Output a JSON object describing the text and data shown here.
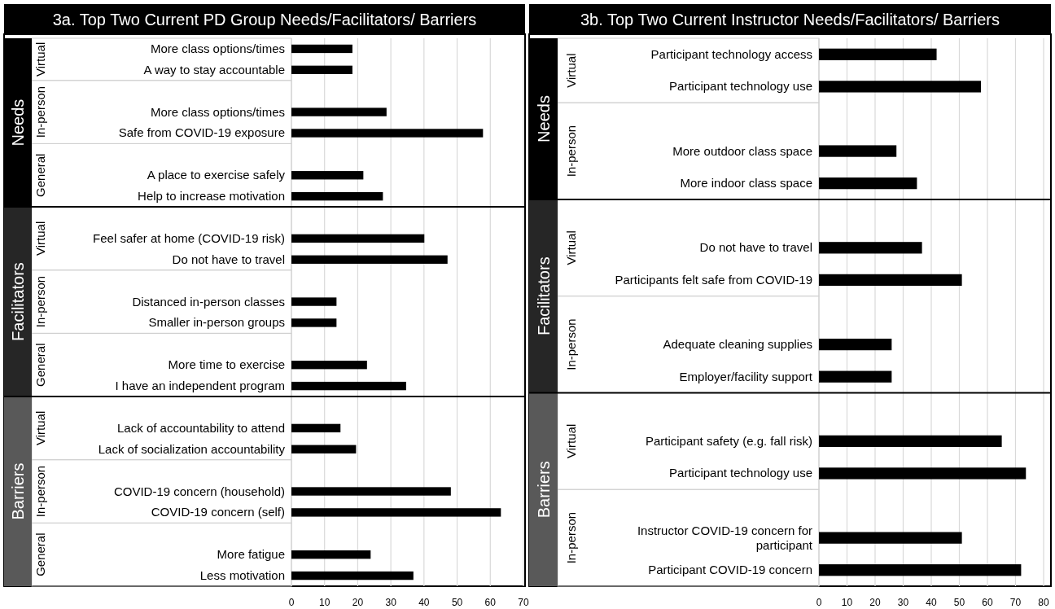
{
  "chart_data": [
    {
      "type": "bar",
      "orientation": "horizontal",
      "title": "3a. Top Two Current PD Group Needs/Facilitators/ Barriers",
      "color": "#000000",
      "grid": "x",
      "xlim": [
        0,
        70
      ],
      "xticks": [
        0,
        10,
        20,
        30,
        40,
        50,
        60,
        70
      ],
      "categories": [
        "More class options/times",
        "A way to stay accountable",
        null,
        "More class options/times",
        "Safe from COVID-19 exposure",
        null,
        "A place to exercise safely",
        "Help to increase motivation",
        null,
        "Feel safer at home (COVID-19 risk)",
        "Do not have to travel",
        null,
        "Distanced in-person classes",
        "Smaller in-person groups",
        null,
        "More time to exercise",
        "I have an independent program",
        null,
        "Lack of accountability to attend",
        "Lack of socialization accountability",
        null,
        "COVID-19 concern (household)",
        "COVID-19 concern (self)",
        null,
        "More fatigue",
        "Less motivation"
      ],
      "values": [
        18.4,
        18.4,
        null,
        28.7,
        57.8,
        null,
        21.7,
        27.6,
        null,
        40.1,
        47.1,
        null,
        13.6,
        13.6,
        null,
        22.8,
        34.6,
        null,
        14.8,
        19.5,
        null,
        48.1,
        63.2,
        null,
        23.9,
        36.8
      ],
      "annotations": [
        "Needs",
        "Virtual",
        "In-person",
        "General",
        "Facilitators",
        "Virtual",
        "In-person",
        "General",
        "Barriers",
        "Virtual",
        "In-person",
        "General"
      ]
    },
    {
      "type": "bar",
      "orientation": "horizontal",
      "title": "3b. Top Two Current Instructor Needs/Facilitators/ Barriers",
      "color": "#000000",
      "grid": "x",
      "xlim": [
        0,
        80
      ],
      "xticks": [
        0,
        10,
        20,
        30,
        40,
        50,
        60,
        70,
        80
      ],
      "categories": [
        "Participant technology access",
        "Participant technology use",
        null,
        "More outdoor class space",
        "More indoor class space",
        null,
        "Do not have to travel",
        "Participants felt safe from COVID-19",
        null,
        "Adequate cleaning supplies",
        "Employer/facility support",
        null,
        "Participant safety (e.g. fall risk)",
        "Participant technology use",
        null,
        "Instructor COVID-19 concern for participant",
        "Participant COVID-19 concern"
      ],
      "values": [
        41.9,
        57.7,
        null,
        27.6,
        34.9,
        null,
        36.7,
        50.9,
        null,
        25.9,
        25.9,
        null,
        65.1,
        73.7,
        null,
        50.9,
        72.0
      ],
      "annotations": [
        "Needs",
        "Virtual",
        "In-person",
        "Facilitators",
        "Virtual",
        "In-person",
        "Barriers",
        "Virtual",
        "In-person"
      ]
    }
  ]
}
